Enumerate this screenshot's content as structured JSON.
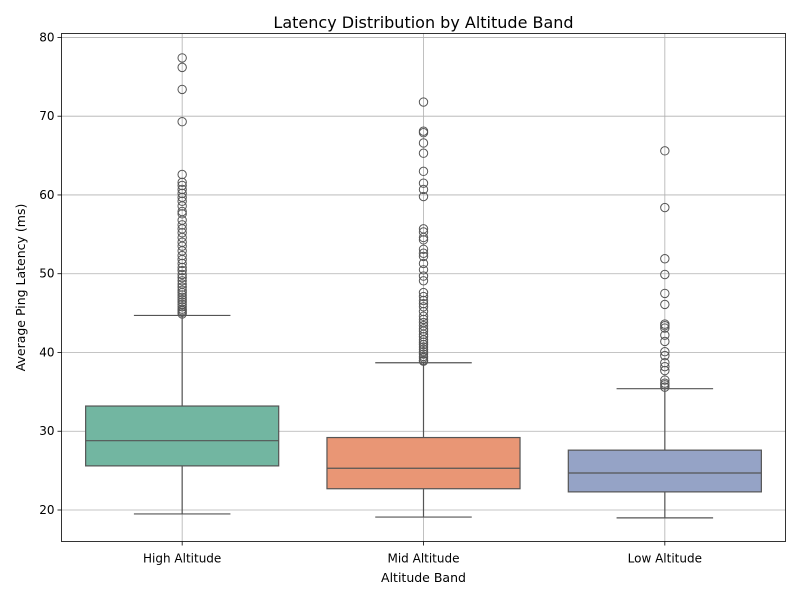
{
  "chart_data": {
    "type": "box",
    "title": "Latency Distribution by Altitude Band",
    "xlabel": "Altitude Band",
    "ylabel": "Average Ping Latency (ms)",
    "ylim": [
      16,
      80.5
    ],
    "yticks": [
      20,
      30,
      40,
      50,
      60,
      70,
      80
    ],
    "grid": true,
    "categories": [
      "High Altitude",
      "Mid Altitude",
      "Low Altitude"
    ],
    "series": [
      {
        "category": "High Altitude",
        "color": "#72b6a1",
        "whisker_low": 19.5,
        "q1": 25.6,
        "median": 28.8,
        "q3": 33.2,
        "whisker_high": 44.7,
        "outliers": [
          77.4,
          76.2,
          73.4,
          69.3,
          62.6,
          61.6,
          61.2,
          60.7,
          60.2,
          59.7,
          59.2,
          58.6,
          57.9,
          57.6,
          56.8,
          56.2,
          55.7,
          55.2,
          54.6,
          54.0,
          53.5,
          52.9,
          52.3,
          51.8,
          51.3,
          50.8,
          50.4,
          49.9,
          49.5,
          49.1,
          48.7,
          48.3,
          47.9,
          47.6,
          47.3,
          47.0,
          46.7,
          46.4,
          46.1,
          45.8,
          45.5,
          45.3,
          45.1,
          44.9
        ]
      },
      {
        "category": "Mid Altitude",
        "color": "#e99675",
        "whisker_low": 19.1,
        "q1": 22.7,
        "median": 25.3,
        "q3": 29.2,
        "whisker_high": 38.7,
        "outliers": [
          71.8,
          68.1,
          67.9,
          66.6,
          65.3,
          63.0,
          61.5,
          60.7,
          59.8,
          55.7,
          55.3,
          54.6,
          54.3,
          53.1,
          52.6,
          52.2,
          51.3,
          50.5,
          49.7,
          49.1,
          47.6,
          47.1,
          46.6,
          46.2,
          45.8,
          45.2,
          44.6,
          44.2,
          43.8,
          43.4,
          43.0,
          42.7,
          42.3,
          42.0,
          41.6,
          41.3,
          41.0,
          40.7,
          40.4,
          40.1,
          39.8,
          39.5,
          39.3,
          39.0,
          38.9
        ]
      },
      {
        "category": "Low Altitude",
        "color": "#95a3c6",
        "whisker_low": 19.0,
        "q1": 22.3,
        "median": 24.7,
        "q3": 27.6,
        "whisker_high": 35.4,
        "outliers": [
          65.6,
          58.4,
          51.9,
          49.9,
          47.5,
          46.1,
          43.6,
          43.4,
          43.1,
          42.2,
          41.4,
          40.1,
          39.6,
          38.7,
          38.2,
          37.7,
          36.5,
          36.1,
          35.9,
          35.6
        ]
      }
    ]
  }
}
